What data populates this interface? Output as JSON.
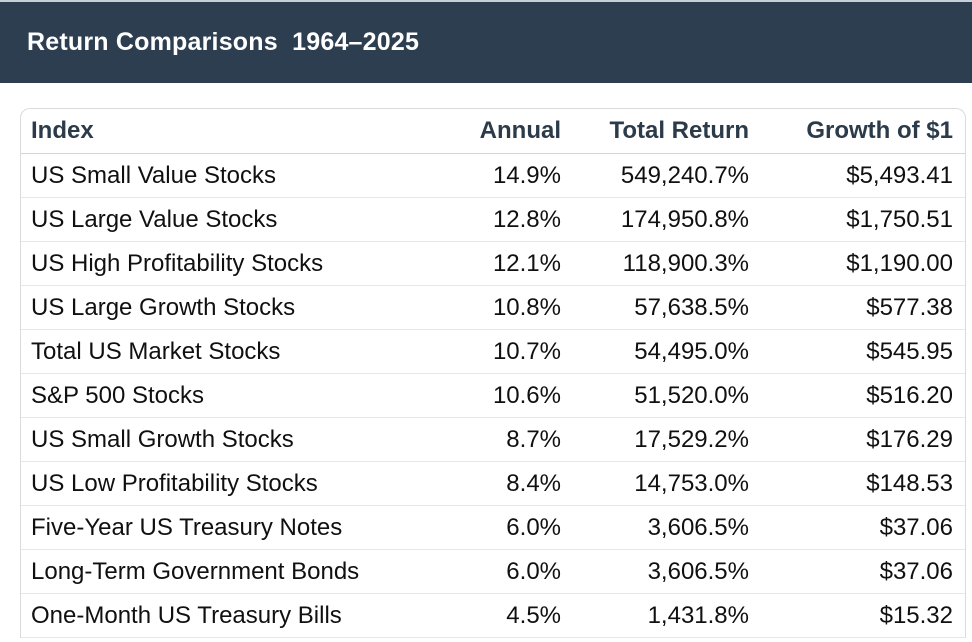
{
  "header": {
    "title": "Return Comparisons  1964–2025"
  },
  "colors": {
    "title_bar_bg": "#2d3e50",
    "title_text": "#ffffff",
    "column_header_text": "#2c3b49",
    "body_text": "#101010",
    "table_border": "#d9dbdd",
    "row_divider": "#e5e7e8",
    "top_strip": "#c6d0d8"
  },
  "table": {
    "columns": [
      {
        "label": "Index",
        "align": "left"
      },
      {
        "label": "Annual",
        "align": "right"
      },
      {
        "label": "Total Return",
        "align": "right"
      },
      {
        "label": "Growth of $1",
        "align": "right"
      }
    ],
    "rows": [
      [
        "US Small Value Stocks",
        "14.9%",
        "549,240.7%",
        "$5,493.41"
      ],
      [
        "US Large Value Stocks",
        "12.8%",
        "174,950.8%",
        "$1,750.51"
      ],
      [
        "US High Profitability Stocks",
        "12.1%",
        "118,900.3%",
        "$1,190.00"
      ],
      [
        "US Large Growth Stocks",
        "10.8%",
        "57,638.5%",
        "$577.38"
      ],
      [
        "Total US Market Stocks",
        "10.7%",
        "54,495.0%",
        "$545.95"
      ],
      [
        "S&P 500 Stocks",
        "10.6%",
        "51,520.0%",
        "$516.20"
      ],
      [
        "US Small Growth Stocks",
        "8.7%",
        "17,529.2%",
        "$176.29"
      ],
      [
        "US Low Profitability Stocks",
        "8.4%",
        "14,753.0%",
        "$148.53"
      ],
      [
        "Five-Year US Treasury Notes",
        "6.0%",
        "3,606.5%",
        "$37.06"
      ],
      [
        "Long-Term Government Bonds",
        "6.0%",
        "3,606.5%",
        "$37.06"
      ],
      [
        "One-Month US Treasury Bills",
        "4.5%",
        "1,431.8%",
        "$15.32"
      ]
    ]
  },
  "chart_data": {
    "type": "table",
    "title": "Return Comparisons 1964–2025",
    "columns": [
      "Index",
      "Annual",
      "Total Return",
      "Growth of $1"
    ],
    "categories": [
      "US Small Value Stocks",
      "US Large Value Stocks",
      "US High Profitability Stocks",
      "US Large Growth Stocks",
      "Total US Market Stocks",
      "S&P 500 Stocks",
      "US Small Growth Stocks",
      "US Low Profitability Stocks",
      "Five-Year US Treasury Notes",
      "Long-Term Government Bonds",
      "One-Month US Treasury Bills"
    ],
    "series": [
      {
        "name": "Annual (%)",
        "values": [
          14.9,
          12.8,
          12.1,
          10.8,
          10.7,
          10.6,
          8.7,
          8.4,
          6.0,
          6.0,
          4.5
        ]
      },
      {
        "name": "Total Return (%)",
        "values": [
          549240.7,
          174950.8,
          118900.3,
          57638.5,
          54495.0,
          51520.0,
          17529.2,
          14753.0,
          3606.5,
          3606.5,
          1431.8
        ]
      },
      {
        "name": "Growth of $1 ($)",
        "values": [
          5493.41,
          1750.51,
          1190.0,
          577.38,
          545.95,
          516.2,
          176.29,
          148.53,
          37.06,
          37.06,
          15.32
        ]
      }
    ]
  }
}
